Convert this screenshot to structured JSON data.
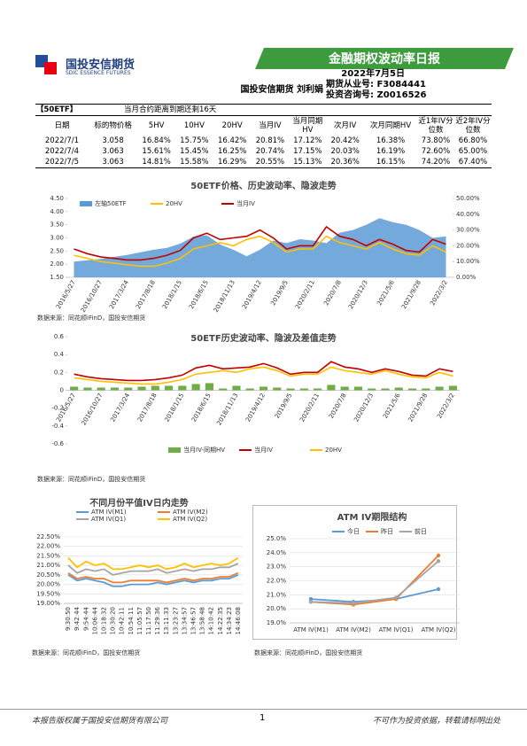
{
  "header": {
    "company": "国投安信期货",
    "company_en": "SDIC ESSENCE FUTURES",
    "banner": "金融期权波动率日报",
    "date": "2022年7月5日",
    "author": "国投安信期货 刘利娟",
    "license": "期货从业号: F3084441",
    "consult": "投资咨询号: Z0016526"
  },
  "table": {
    "product": "【50ETF】",
    "note": "当月合约距离到期还剩16天",
    "columns": [
      "日期",
      "标的物价格",
      "5HV",
      "10HV",
      "20HV",
      "当月IV",
      "当月同期HV",
      "次月IV",
      "次月同期HV",
      "近1年IV分位数",
      "近2年IV分位数"
    ],
    "rows": [
      [
        "2022/7/1",
        "3.058",
        "16.84%",
        "15.75%",
        "16.42%",
        "20.81%",
        "17.12%",
        "20.42%",
        "16.38%",
        "73.80%",
        "66.80%"
      ],
      [
        "2022/7/4",
        "3.063",
        "15.61%",
        "15.45%",
        "16.25%",
        "20.74%",
        "17.15%",
        "20.03%",
        "16.19%",
        "72.60%",
        "65.00%"
      ],
      [
        "2022/7/5",
        "3.063",
        "14.81%",
        "15.58%",
        "16.29%",
        "20.55%",
        "15.13%",
        "20.36%",
        "16.15%",
        "74.20%",
        "67.40%"
      ]
    ]
  },
  "chart_data": [
    {
      "type": "combo",
      "title": "50ETF价格、历史波动率、隐波走势",
      "source": "数据来源：同花顺iFinD，国投安信期货",
      "categories": [
        "2016/5/27",
        null,
        "2016/10/27",
        null,
        "2017/3/24",
        null,
        "2017/8/18",
        null,
        "2018/1/15",
        null,
        "2018/6/15",
        null,
        "2018/11/13",
        null,
        "2019/4/12",
        null,
        "2019/9/5",
        null,
        "2020/2/11",
        null,
        "2020/7/8",
        null,
        "2020/12/3",
        null,
        "2021/5/6",
        null,
        "2021/9/28",
        null,
        "2022/3/2"
      ],
      "ylim": [
        1.5,
        4.5
      ],
      "yticks": [
        {
          "value": 1.5,
          "label": "1.50"
        },
        {
          "value": 2,
          "label": "2.00"
        },
        {
          "value": 2.5,
          "label": "2.50"
        },
        {
          "value": 3,
          "label": "3.00"
        },
        {
          "value": 3.5,
          "label": "3.50"
        },
        {
          "value": 4,
          "label": "4.00"
        },
        {
          "value": 4.5,
          "label": "4.50"
        }
      ],
      "y2lim": [
        0,
        50
      ],
      "y2ticks": [
        {
          "value": 0,
          "label": "0.00%"
        },
        {
          "value": 10,
          "label": "10.00%"
        },
        {
          "value": 20,
          "label": "20.00%"
        },
        {
          "value": 30,
          "label": "30.00%"
        },
        {
          "value": 40,
          "label": "40.00%"
        },
        {
          "value": 50,
          "label": "50.00%"
        }
      ],
      "grid": false,
      "series": [
        {
          "name": "左轴50ETF",
          "kind": "area",
          "color": "#5b9bd5",
          "values": [
            2.1,
            2.15,
            2.2,
            2.28,
            2.35,
            2.45,
            2.55,
            2.62,
            2.78,
            3.05,
            3.1,
            2.75,
            2.55,
            2.3,
            2.55,
            2.9,
            2.8,
            2.95,
            2.9,
            2.8,
            3.2,
            3.3,
            3.5,
            3.75,
            3.6,
            3.5,
            3.3,
            3.0,
            3.06
          ]
        },
        {
          "name": "20HV",
          "kind": "line",
          "axis": "y2",
          "color": "#ffc000",
          "values": [
            14,
            12,
            10,
            9,
            8,
            7,
            7,
            9,
            12,
            18,
            20,
            22,
            20,
            24,
            26,
            22,
            16,
            18,
            18,
            26,
            22,
            20,
            18,
            22,
            18,
            15,
            14,
            20,
            16
          ]
        },
        {
          "name": "当月IV",
          "kind": "line",
          "axis": "y2",
          "color": "#c00000",
          "values": [
            18,
            15,
            13,
            12,
            11,
            11,
            12,
            14,
            17,
            25,
            28,
            24,
            25,
            26,
            30,
            25,
            18,
            20,
            20,
            32,
            26,
            24,
            20,
            24,
            21,
            17,
            16,
            24,
            21
          ]
        }
      ]
    },
    {
      "type": "combo",
      "title": "50ETF历史波动率、隐波及差值走势",
      "source": "数据来源：同花顺iFinD，国投安信期货",
      "categories": [
        "2016/5/27",
        null,
        "2016/10/27",
        null,
        "2017/3/24",
        null,
        "2017/8/18",
        null,
        "2018/1/15",
        null,
        "2018/6/15",
        null,
        "2018/11/13",
        null,
        "2019/4/12",
        null,
        "2019/9/5",
        null,
        "2020/2/11",
        null,
        "2020/7/8",
        null,
        "2020/12/3",
        null,
        "2021/5/6",
        null,
        "2021/9/28",
        null,
        "2022/3/2"
      ],
      "ylim": [
        -0.6,
        0.6
      ],
      "yticks": [
        -0.6,
        -0.4,
        -0.2,
        0,
        0.2,
        0.4,
        0.6
      ],
      "grid": false,
      "series": [
        {
          "name": "当月IV-同期HV",
          "kind": "bar",
          "color": "#70ad47",
          "values": [
            0.04,
            0.03,
            0.03,
            0.03,
            0.03,
            0.04,
            0.05,
            0.05,
            0.05,
            0.07,
            0.08,
            0.02,
            0.05,
            0.02,
            0.04,
            0.03,
            0.02,
            0.02,
            0.02,
            0.06,
            0.04,
            0.04,
            0.02,
            0.02,
            0.03,
            0.02,
            0.02,
            0.04,
            0.05
          ]
        },
        {
          "name": "当月IV",
          "kind": "line",
          "color": "#c00000",
          "values": [
            0.18,
            0.15,
            0.13,
            0.12,
            0.11,
            0.11,
            0.12,
            0.14,
            0.17,
            0.25,
            0.28,
            0.24,
            0.25,
            0.26,
            0.3,
            0.25,
            0.18,
            0.2,
            0.2,
            0.32,
            0.26,
            0.24,
            0.2,
            0.24,
            0.21,
            0.17,
            0.16,
            0.24,
            0.21
          ]
        },
        {
          "name": "20HV",
          "kind": "line",
          "color": "#ffc000",
          "values": [
            0.14,
            0.12,
            0.1,
            0.09,
            0.08,
            0.07,
            0.07,
            0.09,
            0.12,
            0.18,
            0.2,
            0.22,
            0.2,
            0.24,
            0.26,
            0.22,
            0.16,
            0.18,
            0.18,
            0.26,
            0.22,
            0.2,
            0.18,
            0.22,
            0.18,
            0.15,
            0.14,
            0.2,
            0.16
          ]
        }
      ]
    },
    {
      "type": "line",
      "title": "不同月份平值IV日内走势",
      "source": "数据来源：同花顺iFinD，国投安信期货",
      "categories": [
        "9:30:50",
        "9:42:44",
        "9:54:44",
        "10:06:44",
        "10:18:32",
        "10:30:20",
        "10:42:11",
        "10:54:11",
        "11:05:57",
        "11:17:50",
        "11:29:36",
        "13:11:33",
        "13:23:27",
        "13:34:57",
        "13:46:57",
        "13:58:48",
        "14:10:42",
        "14:22:35",
        "14:34:23",
        "14:46:08"
      ],
      "ylim": [
        19,
        22.5
      ],
      "yticks": [
        {
          "value": 19,
          "label": "19.00%"
        },
        {
          "value": 19.5,
          "label": "19.50%"
        },
        {
          "value": 20,
          "label": "20.00%"
        },
        {
          "value": 20.5,
          "label": "20.50%"
        },
        {
          "value": 21,
          "label": "21.00%"
        },
        {
          "value": 21.5,
          "label": "21.50%"
        },
        {
          "value": 22,
          "label": "22.00%"
        },
        {
          "value": 22.5,
          "label": "22.50%"
        }
      ],
      "grid": true,
      "series": [
        {
          "name": "ATM IV(M1)",
          "color": "#5b9bd5",
          "values": [
            20.5,
            20.2,
            20.3,
            20.2,
            20.1,
            19.9,
            19.9,
            20.0,
            20.0,
            20.0,
            20.1,
            20.0,
            20.1,
            20.2,
            20.1,
            20.2,
            20.2,
            20.3,
            20.3,
            20.5
          ]
        },
        {
          "name": "ATM IV(M2)",
          "color": "#ed7d31",
          "values": [
            20.6,
            20.3,
            20.4,
            20.3,
            20.3,
            20.1,
            20.1,
            20.2,
            20.2,
            20.2,
            20.2,
            20.1,
            20.2,
            20.3,
            20.2,
            20.3,
            20.3,
            20.4,
            20.4,
            20.6
          ]
        },
        {
          "name": "ATM IV(Q1)",
          "color": "#a5a5a5",
          "values": [
            21.0,
            20.6,
            20.8,
            20.7,
            20.8,
            20.5,
            20.6,
            20.7,
            20.7,
            20.7,
            20.8,
            20.6,
            20.7,
            20.8,
            20.7,
            20.8,
            20.8,
            20.9,
            20.9,
            21.1
          ]
        },
        {
          "name": "ATM IV(Q2)",
          "color": "#ffc000",
          "values": [
            21.4,
            20.9,
            21.2,
            21.0,
            21.1,
            20.8,
            20.8,
            20.9,
            21.0,
            20.9,
            21.0,
            20.8,
            20.9,
            21.1,
            20.9,
            21.0,
            21.1,
            21.0,
            21.1,
            21.4
          ]
        }
      ]
    },
    {
      "type": "line",
      "title": "ATM IV期限结构",
      "source": "数据来源：同花顺iFinD，国投安信期货",
      "markers": true,
      "categories": [
        "ATM IV(M1)",
        "ATM IV(M2)",
        "ATM IV(Q1)",
        "ATM IV(Q2)"
      ],
      "ylim": [
        19,
        25
      ],
      "yticks": [
        {
          "value": 19,
          "label": "19.0%"
        },
        {
          "value": 20,
          "label": "20.0%"
        },
        {
          "value": 21,
          "label": "21.0%"
        },
        {
          "value": 22,
          "label": "22.0%"
        },
        {
          "value": 23,
          "label": "23.0%"
        },
        {
          "value": 24,
          "label": "24.0%"
        },
        {
          "value": 25,
          "label": "25.0%"
        }
      ],
      "grid": true,
      "series": [
        {
          "name": "今日",
          "color": "#5b9bd5",
          "values": [
            20.7,
            20.5,
            20.7,
            21.4
          ]
        },
        {
          "name": "昨日",
          "color": "#ed7d31",
          "values": [
            20.5,
            20.3,
            20.7,
            23.8
          ]
        },
        {
          "name": "前日",
          "color": "#a5a5a5",
          "values": [
            20.5,
            20.4,
            20.8,
            23.4
          ]
        }
      ]
    }
  ],
  "footer": {
    "left": "本报告版权属于国投安信期货有限公司",
    "page": "1",
    "right": "不可作为投资依据，转载请标明出处"
  }
}
